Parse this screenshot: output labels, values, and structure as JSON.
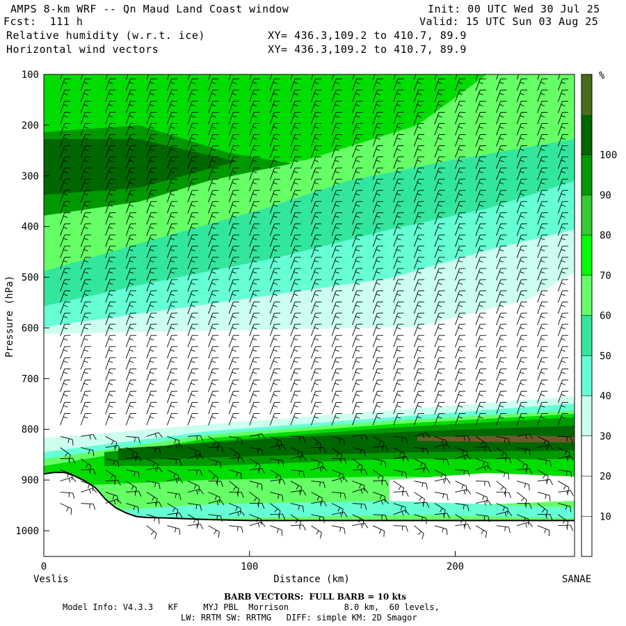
{
  "header": {
    "title": "AMPS 8-km WRF -- Qn Maud Land Coast window",
    "init": "Init: 00 UTC Wed 30 Jul 25",
    "fcst": "Fcst:  111 h",
    "valid": "Valid: 15 UTC Sun 03 Aug 25",
    "field1": "Relative humidity (w.r.t. ice)",
    "xy1": "XY= 436.3,109.2 to 410.7, 89.9",
    "field2": "Horizontal wind vectors",
    "xy2": "XY= 436.3,109.2 to 410.7, 89.9"
  },
  "axes": {
    "ylabel": "Pressure (hPa)",
    "xlabel": "Distance (km)",
    "left_station": "Veslis",
    "right_station": "SANAE",
    "ytick_labels": [
      "100",
      "200",
      "300",
      "400",
      "500",
      "600",
      "700",
      "800",
      "900",
      "1000"
    ],
    "xtick_labels": [
      "0",
      "100",
      "200"
    ]
  },
  "colorbar": {
    "unit": "%",
    "labels": [
      "10",
      "20",
      "30",
      "40",
      "50",
      "60",
      "70",
      "80",
      "90",
      "100"
    ],
    "colors": [
      "#ffffff",
      "#ffffff",
      "#ffffff",
      "#ccfff0",
      "#66ffd6",
      "#33e69e",
      "#66ff66",
      "#00ff00",
      "#33cc33",
      "#009900",
      "#006600",
      "#4a6b1a"
    ]
  },
  "footer": {
    "barb": "BARB VECTORS:  FULL BARB = 10 kts",
    "model_info": "Model Info: V4.3.3   KF     MYJ PBL  Morrison           8.0 km,  60 levels,",
    "physics": "LW: RRTM SW: RRTMG   DIFF: simple KM: 2D Smagor"
  },
  "chart_data": {
    "type": "heatmap",
    "title": "Relative humidity (w.r.t. ice)",
    "xlabel": "Distance (km)",
    "ylabel": "Pressure (hPa)",
    "xlim": [
      0,
      258
    ],
    "ylim": [
      1050,
      100
    ],
    "x_ticks": [
      0,
      100,
      200
    ],
    "y_ticks": [
      100,
      200,
      300,
      400,
      500,
      600,
      700,
      800,
      900,
      1000
    ],
    "colorbar_unit": "%",
    "colorbar_levels": [
      10,
      20,
      30,
      40,
      50,
      60,
      70,
      80,
      90,
      100
    ],
    "terrain_profile": {
      "x_km": [
        0,
        5,
        10,
        15,
        20,
        25,
        30,
        35,
        40,
        45,
        50,
        60,
        80,
        100,
        150,
        200,
        258
      ],
      "pressure_hPa": [
        888,
        885,
        885,
        892,
        902,
        915,
        938,
        955,
        965,
        972,
        974,
        975,
        978,
        980,
        980,
        980,
        980
      ]
    },
    "rh_layers": [
      {
        "x_km": [
          0,
          258
        ],
        "p_top_hPa": [
          100,
          100
        ],
        "p_bot_hPa": [
          600,
          560
        ],
        "rh_min": 40,
        "rh_max": 90
      },
      {
        "x_km": [
          0,
          258
        ],
        "p_top_hPa": [
          220,
          280
        ],
        "p_bot_hPa": [
          320,
          300
        ],
        "rh_min": 80,
        "rh_max": 95
      },
      {
        "x_km": [
          0,
          258
        ],
        "p_top_hPa": [
          780,
          760
        ],
        "p_bot_hPa": [
          900,
          880
        ],
        "rh_min": 60,
        "rh_max": 95
      },
      {
        "x_km": [
          0,
          258
        ],
        "p_top_hPa": [
          900,
          880
        ],
        "p_bot_hPa": [
          980,
          980
        ],
        "rh_min": 20,
        "rh_max": 70
      }
    ],
    "wind_barbs": {
      "x_km": [
        8,
        18,
        30,
        40,
        50,
        60,
        70,
        80,
        90,
        100,
        110,
        120,
        130,
        140,
        150,
        160,
        170,
        180,
        190,
        200,
        210,
        220,
        230,
        240,
        250
      ],
      "pressure_range_hPa": [
        110,
        990
      ],
      "full_barb_kts": 10
    }
  }
}
